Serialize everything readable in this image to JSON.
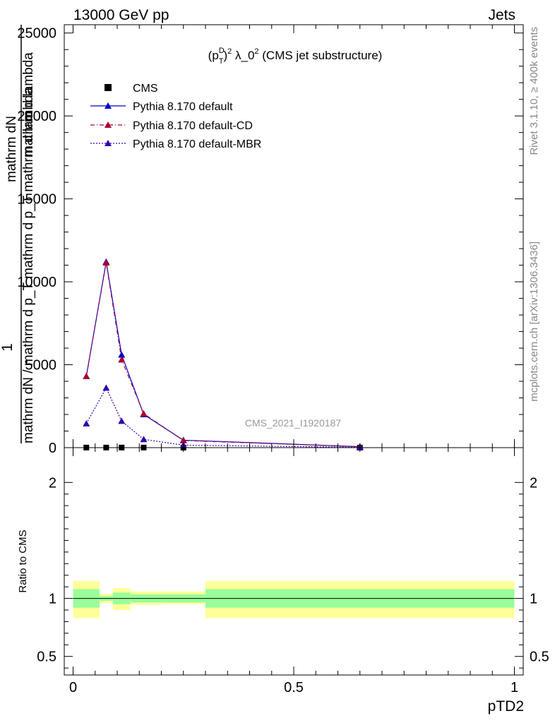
{
  "header": {
    "left": "13000 GeV pp",
    "right": "Jets"
  },
  "side": {
    "rivet": "Rivet 3.1.10, ≥ 400k events",
    "mcplots": "mcplots.cern.ch [arXiv:1306.3436]"
  },
  "chart_data": {
    "type": "line",
    "title_parts": {
      "p": "(p",
      "sup_d": "D",
      "sub_t": "T",
      "close": ")",
      "exp2": "2",
      "lambda": " λ_0",
      "exp3": "2",
      "rest": " (CMS jet substructure)"
    },
    "watermark": "CMS_2021_I1920187",
    "ylabel_top": "1",
    "ylabel_line1": "mathrm dN",
    "ylabel_line2": "mathrm dN / mathrm d p_T mathrm d p_T mathrm d lambda",
    "ylabel_line3": "mathrm d lambda",
    "xlabel": "pTD2",
    "ratio_ylabel": "Ratio to CMS",
    "xlim": [
      -0.02,
      1.02
    ],
    "main_ylim": [
      0,
      25500
    ],
    "main_yticks": [
      0,
      5000,
      10000,
      15000,
      20000,
      25000
    ],
    "main_ytick_labels": [
      "0",
      "5000",
      "10000",
      "15000",
      "20000",
      "25000"
    ],
    "ratio_ylim": [
      0.34,
      2.3
    ],
    "ratio_yticks": [
      0.5,
      1,
      2
    ],
    "ratio_ytick_labels": [
      "0.5",
      "1",
      "2"
    ],
    "xticks": [
      0,
      0.5,
      1
    ],
    "xtick_labels": [
      "0",
      "0.5",
      "1"
    ],
    "bins": [
      0,
      0.06,
      0.09,
      0.13,
      0.2,
      0.3,
      1.0
    ],
    "series": [
      {
        "name": "CMS",
        "style": "data",
        "color": "#000000",
        "x": [
          0.03,
          0.075,
          0.11,
          0.16,
          0.25,
          0.65
        ],
        "y": [
          5,
          5,
          5,
          5,
          3,
          1
        ]
      },
      {
        "name": "Pythia 8.170 default",
        "style": "solid",
        "color": "#0000cc",
        "x": [
          0.03,
          0.075,
          0.11,
          0.16,
          0.25,
          0.65
        ],
        "y": [
          4300,
          11200,
          5600,
          2000,
          450,
          60
        ]
      },
      {
        "name": "Pythia 8.170 default-CD",
        "style": "dashdot",
        "color": "#aa0033",
        "x": [
          0.03,
          0.075,
          0.11,
          0.16,
          0.25,
          0.65
        ],
        "y": [
          4300,
          11150,
          5300,
          2050,
          430,
          55
        ]
      },
      {
        "name": "Pythia 8.170 default-MBR",
        "style": "dotted",
        "color": "#3300aa",
        "x": [
          0.03,
          0.075,
          0.11,
          0.16,
          0.25,
          0.65
        ],
        "y": [
          1450,
          3600,
          1600,
          500,
          150,
          20
        ]
      }
    ],
    "ratio_bands": {
      "inner_color": "#99ff99",
      "outer_color": "#ffff99",
      "inner": [
        [
          0.92,
          1.08
        ],
        [
          0.98,
          1.02
        ],
        [
          0.95,
          1.05
        ],
        [
          0.965,
          1.035
        ],
        [
          0.965,
          1.035
        ],
        [
          0.92,
          1.08
        ]
      ],
      "outer": [
        [
          0.83,
          1.15
        ],
        [
          0.96,
          1.04
        ],
        [
          0.9,
          1.09
        ],
        [
          0.945,
          1.06
        ],
        [
          0.95,
          1.06
        ],
        [
          0.83,
          1.15
        ]
      ]
    }
  }
}
